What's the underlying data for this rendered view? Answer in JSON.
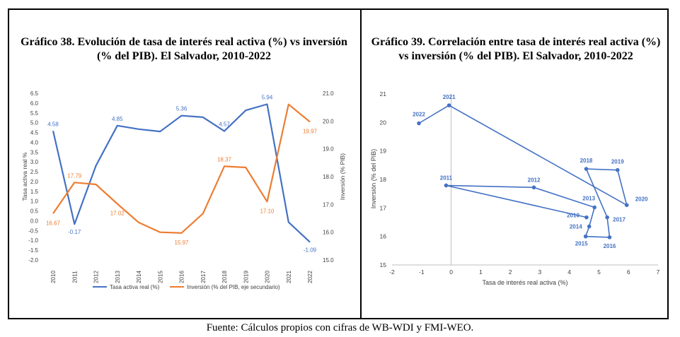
{
  "source": "Fuente: Cálculos propios con cifras de WB-WDI y FMI-WEO.",
  "colors": {
    "blue": "#4472C4",
    "orange": "#ED7D31",
    "axis_text": "#404040",
    "grid": "#d9d9d9"
  },
  "chart_data": [
    {
      "type": "line",
      "title": "Gráfico 38. Evolución de tasa de interés real activa (%) vs inversión (% del PIB). El Salvador, 2010-2022",
      "x": [
        2010,
        2011,
        2012,
        2013,
        2014,
        2015,
        2016,
        2017,
        2018,
        2019,
        2020,
        2021,
        2022
      ],
      "x_tick_labels": [
        "2010",
        "2011",
        "2012",
        "2013",
        "2014",
        "2015",
        "2016",
        "2017",
        "2018",
        "2019",
        "2020",
        "2021",
        "2022"
      ],
      "ylabel": "Tasa activa real %",
      "y2label": "Inversión (% PIB)",
      "ylim": [
        -2.0,
        6.5
      ],
      "y_ticks": [
        "6.5",
        "6.0",
        "5.5",
        "5.0",
        "4.5",
        "4.0",
        "3.5",
        "3.0",
        "2.5",
        "2.0",
        "1.5",
        "1.0",
        "0.5",
        "0.0",
        "-0.5",
        "-1.0",
        "-1.5",
        "-2.0"
      ],
      "y2lim": [
        15.0,
        21.0
      ],
      "y2_ticks": [
        "21.0",
        "20.0",
        "19.0",
        "18.0",
        "17.0",
        "16.0",
        "15.0"
      ],
      "legend_position": "bottom",
      "series": [
        {
          "name": "Tasa activa real (%)",
          "axis": "left",
          "color": "#4472C4",
          "values": [
            4.58,
            -0.17,
            2.8,
            4.85,
            4.67,
            4.55,
            5.36,
            5.28,
            4.57,
            5.63,
            5.94,
            -0.07,
            -1.09
          ],
          "data_labels": [
            {
              "index": 0,
              "text": "4.58"
            },
            {
              "index": 1,
              "text": "-0.17"
            },
            {
              "index": 3,
              "text": "4.85"
            },
            {
              "index": 6,
              "text": "5.36"
            },
            {
              "index": 8,
              "text": "4.57"
            },
            {
              "index": 10,
              "text": "5.94"
            },
            {
              "index": 12,
              "text": "-1.09"
            }
          ]
        },
        {
          "name": "Inversión (% del PIB, eje secundario)",
          "axis": "right",
          "color": "#ED7D31",
          "values": [
            16.67,
            17.79,
            17.72,
            17.02,
            16.35,
            16.0,
            15.97,
            16.67,
            18.37,
            18.33,
            17.1,
            20.6,
            19.97
          ],
          "data_labels": [
            {
              "index": 0,
              "text": "16.67"
            },
            {
              "index": 1,
              "text": "17.79"
            },
            {
              "index": 3,
              "text": "17.02"
            },
            {
              "index": 6,
              "text": "15.97"
            },
            {
              "index": 8,
              "text": "18.37"
            },
            {
              "index": 10,
              "text": "17.10"
            },
            {
              "index": 12,
              "text": "19.97"
            }
          ]
        }
      ]
    },
    {
      "type": "scatter",
      "title": "Gráfico 39. Correlación entre tasa de interés real activa (%) vs inversión (% del PIB). El Salvador, 2010-2022",
      "xlabel": "Tasa de interés real activa (%)",
      "ylabel": "Inversión (% del PIB)",
      "xlim": [
        -2,
        7
      ],
      "x_ticks": [
        "-2",
        "-1",
        "0",
        "1",
        "2",
        "3",
        "4",
        "5",
        "6",
        "7"
      ],
      "ylim": [
        15,
        21
      ],
      "y_ticks": [
        "21",
        "20",
        "19",
        "18",
        "17",
        "16",
        "15"
      ],
      "connected": true,
      "color": "#4472C4",
      "points": [
        {
          "label": "2010",
          "x": 4.58,
          "y": 16.67
        },
        {
          "label": "2011",
          "x": -0.17,
          "y": 17.79
        },
        {
          "label": "2012",
          "x": 2.8,
          "y": 17.72
        },
        {
          "label": "2013",
          "x": 4.85,
          "y": 17.02
        },
        {
          "label": "2014",
          "x": 4.67,
          "y": 16.35
        },
        {
          "label": "2015",
          "x": 4.55,
          "y": 16.0
        },
        {
          "label": "2016",
          "x": 5.36,
          "y": 15.97
        },
        {
          "label": "2017",
          "x": 5.28,
          "y": 16.67
        },
        {
          "label": "2018",
          "x": 4.57,
          "y": 18.37
        },
        {
          "label": "2019",
          "x": 5.63,
          "y": 18.33
        },
        {
          "label": "2020",
          "x": 5.94,
          "y": 17.1
        },
        {
          "label": "2021",
          "x": -0.07,
          "y": 20.6
        },
        {
          "label": "2022",
          "x": -1.09,
          "y": 19.97
        }
      ]
    }
  ]
}
